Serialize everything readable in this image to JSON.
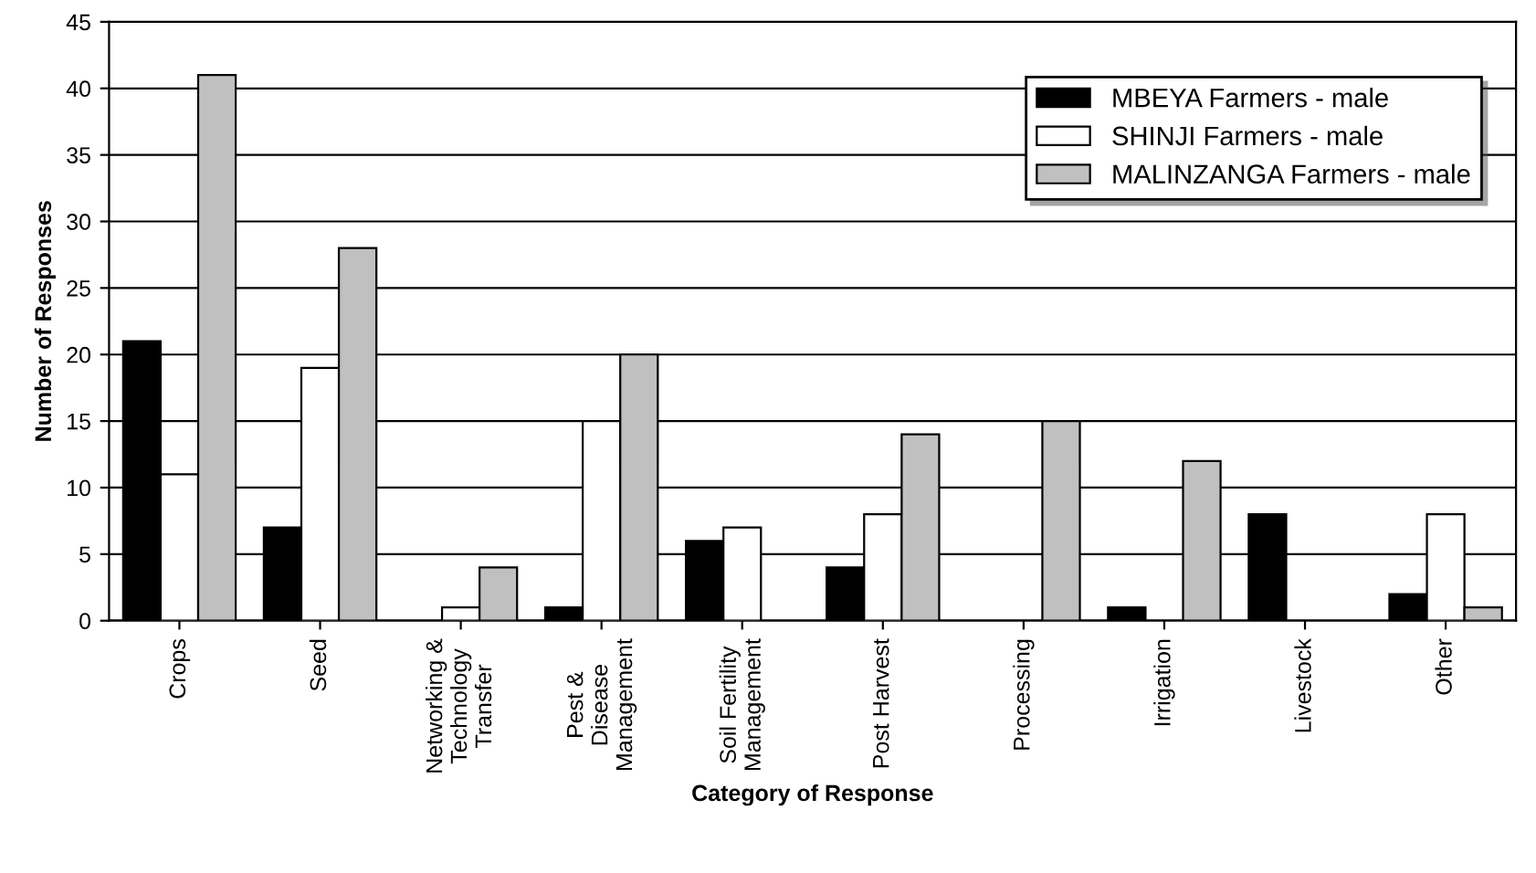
{
  "chart_data": {
    "type": "bar",
    "xlabel": "Category of Response",
    "ylabel": "Number of Responses",
    "categories": [
      "Crops",
      "Seed",
      "Networking &\nTechnology\nTransfer",
      "Pest &\nDisease\nManagement",
      "Soil Fertility\nManagement",
      "Post Harvest",
      "Processing",
      "Irrigation",
      "Livestock",
      "Other"
    ],
    "series": [
      {
        "name": "MBEYA Farmers - male",
        "color": "#000000",
        "values": [
          21,
          7,
          0,
          1,
          6,
          4,
          0,
          1,
          8,
          2
        ]
      },
      {
        "name": "SHINJI Farmers - male",
        "color": "#ffffff",
        "values": [
          11,
          19,
          1,
          15,
          7,
          8,
          0,
          0,
          0,
          8
        ]
      },
      {
        "name": "MALINZANGA Farmers - male",
        "color": "#c0c0c0",
        "values": [
          41,
          28,
          4,
          20,
          0,
          14,
          15,
          12,
          0,
          1
        ]
      }
    ],
    "ylim": [
      0,
      45
    ],
    "yticks": [
      0,
      5,
      10,
      15,
      20,
      25,
      30,
      35,
      40,
      45
    ],
    "grid": "y",
    "legend": "top right"
  }
}
